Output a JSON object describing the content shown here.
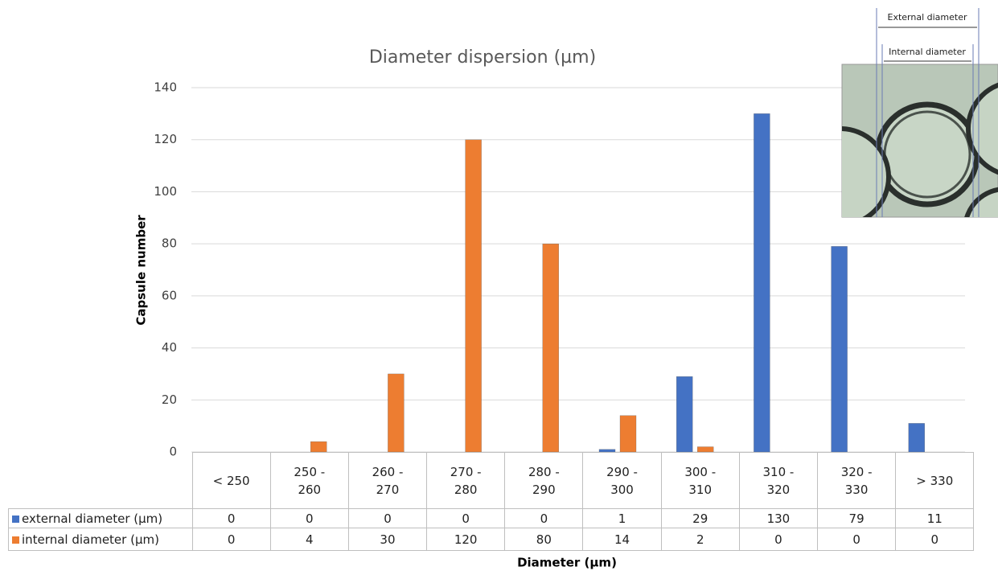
{
  "chart_data": {
    "type": "bar",
    "title": "Diameter dispersion (µm)",
    "y_label": "Capsule number",
    "x_label": "Diameter (µm)",
    "categories": [
      "< 250",
      "250 - 260",
      "260 - 270",
      "270 - 280",
      "280 - 290",
      "290 - 300",
      "300 - 310",
      "310 - 320",
      "320 - 330",
      "> 330"
    ],
    "series": [
      {
        "name": "external diameter (µm)",
        "color": "#4472c4",
        "values": [
          0,
          0,
          0,
          0,
          0,
          1,
          29,
          130,
          79,
          11
        ]
      },
      {
        "name": "internal diameter (µm)",
        "color": "#ed7d31",
        "values": [
          0,
          4,
          30,
          120,
          80,
          14,
          2,
          0,
          0,
          0
        ]
      }
    ],
    "ylim": [
      0,
      140
    ],
    "yticks": [
      0,
      20,
      40,
      60,
      80,
      100,
      120,
      140
    ],
    "grid": true,
    "annotations": [
      "External diameter",
      "Internal diameter"
    ]
  }
}
